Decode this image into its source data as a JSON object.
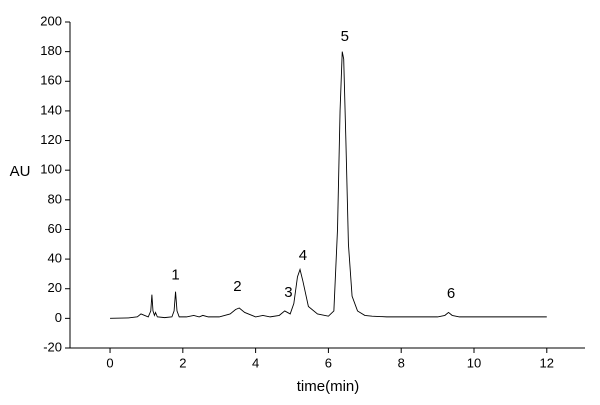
{
  "chart_data": {
    "type": "line",
    "x_label": "time(min)",
    "y_label": "AU",
    "xlim": [
      -1.1,
      13.05
    ],
    "ylim": [
      -20,
      200
    ],
    "xticks": [
      0,
      2,
      4,
      6,
      8,
      10,
      12
    ],
    "yticks": [
      -20,
      0,
      20,
      40,
      60,
      80,
      100,
      120,
      140,
      160,
      180,
      200
    ],
    "grid": false,
    "series": [
      {
        "color": "#000000",
        "x": [
          0,
          0.5,
          0.75,
          0.85,
          0.95,
          1.05,
          1.12,
          1.15,
          1.18,
          1.22,
          1.25,
          1.3,
          1.5,
          1.7,
          1.76,
          1.8,
          1.84,
          1.9,
          2.1,
          2.3,
          2.45,
          2.55,
          2.7,
          3.0,
          3.3,
          3.45,
          3.55,
          3.7,
          4.0,
          4.2,
          4.4,
          4.65,
          4.8,
          4.95,
          5.05,
          5.15,
          5.22,
          5.3,
          5.45,
          5.7,
          6.0,
          6.15,
          6.25,
          6.32,
          6.38,
          6.42,
          6.48,
          6.55,
          6.65,
          6.8,
          7.0,
          7.2,
          7.6,
          8.0,
          8.6,
          9.0,
          9.2,
          9.3,
          9.4,
          9.6,
          10.0,
          11.0,
          12.0
        ],
        "values": [
          0,
          0.3,
          1,
          3,
          2,
          1,
          5,
          16,
          5,
          2,
          4,
          1,
          0.5,
          1,
          5,
          18,
          5,
          1,
          1,
          2,
          1,
          2,
          1,
          1,
          3,
          6,
          7,
          4,
          1,
          2,
          1,
          2,
          5,
          3,
          10,
          28,
          33,
          25,
          8,
          3,
          1.5,
          5,
          60,
          140,
          180,
          175,
          120,
          50,
          15,
          5,
          2,
          1.5,
          1,
          1,
          1,
          1,
          2,
          4,
          2,
          1,
          1,
          1,
          1
        ]
      }
    ],
    "annotations": [
      {
        "text": "1",
        "x": 1.8,
        "y": 29
      },
      {
        "text": "2",
        "x": 3.5,
        "y": 21
      },
      {
        "text": "3",
        "x": 4.9,
        "y": 17
      },
      {
        "text": "4",
        "x": 5.3,
        "y": 42
      },
      {
        "text": "5",
        "x": 6.45,
        "y": 190
      },
      {
        "text": "6",
        "x": 9.37,
        "y": 16.5
      }
    ]
  }
}
